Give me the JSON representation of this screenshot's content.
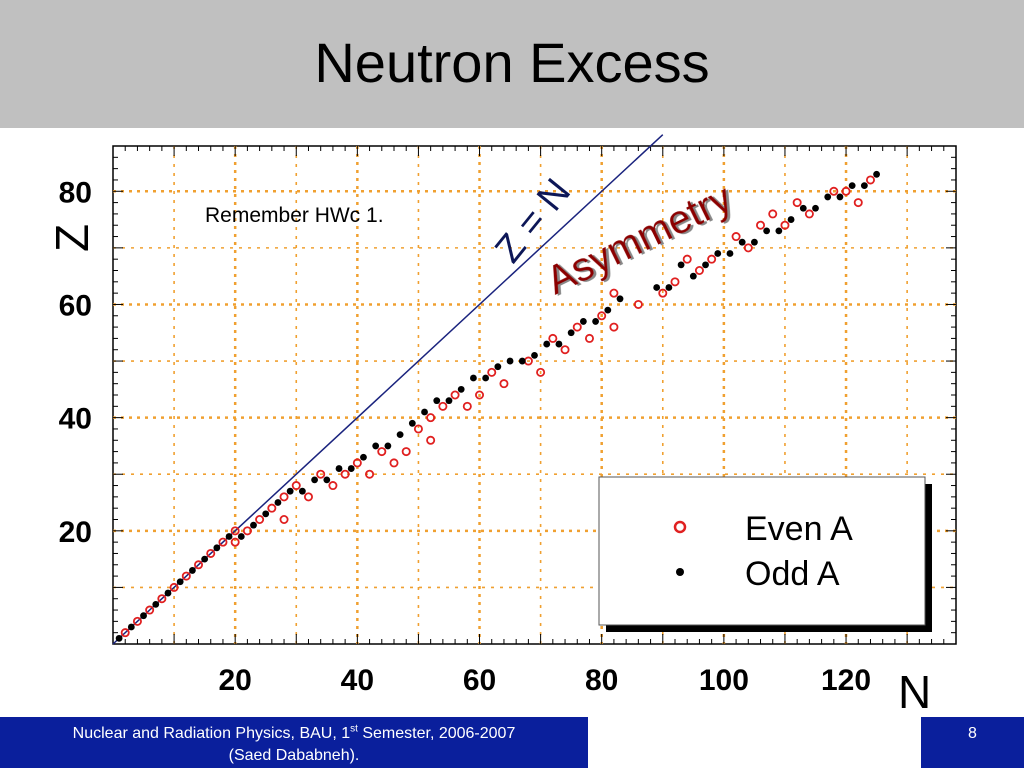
{
  "slide": {
    "title": "Neutron Excess",
    "note": "Remember HWc 1.",
    "footer_pre": "Nuclear and Radiation Physics, BAU, 1",
    "footer_sup": "st",
    "footer_post": " Semester, 2006-2007",
    "footer_line2": "(Saed Dababneh).",
    "page_number": "8"
  },
  "chart_data": {
    "type": "scatter",
    "xlabel": "N",
    "ylabel": "Z",
    "xlim": [
      0,
      138
    ],
    "ylim": [
      0,
      88
    ],
    "x_ticks": [
      20,
      40,
      60,
      80,
      100,
      120
    ],
    "y_ticks": [
      20,
      40,
      60,
      80
    ],
    "grid": true,
    "legend": "bottom-right",
    "annotations": {
      "line_label": "Z = N",
      "asymmetry_label": "Asymmetry"
    },
    "reference_line": {
      "label": "Z = N",
      "from": [
        0,
        0
      ],
      "to": [
        90,
        90
      ]
    },
    "colors": {
      "even": "#e02020",
      "odd": "#000000",
      "grid": "#f0a030",
      "line": "#1a237e",
      "asymmetry": "#8b0000"
    },
    "series": [
      {
        "name": "Even A",
        "marker": "open-circle",
        "points": [
          [
            2,
            2
          ],
          [
            4,
            4
          ],
          [
            6,
            6
          ],
          [
            8,
            8
          ],
          [
            10,
            10
          ],
          [
            12,
            12
          ],
          [
            14,
            14
          ],
          [
            16,
            16
          ],
          [
            18,
            18
          ],
          [
            20,
            20
          ],
          [
            20,
            18
          ],
          [
            22,
            20
          ],
          [
            24,
            22
          ],
          [
            26,
            24
          ],
          [
            28,
            22
          ],
          [
            28,
            26
          ],
          [
            30,
            28
          ],
          [
            32,
            26
          ],
          [
            34,
            30
          ],
          [
            36,
            28
          ],
          [
            38,
            30
          ],
          [
            40,
            32
          ],
          [
            42,
            30
          ],
          [
            44,
            34
          ],
          [
            46,
            32
          ],
          [
            48,
            34
          ],
          [
            50,
            38
          ],
          [
            52,
            40
          ],
          [
            52,
            36
          ],
          [
            54,
            42
          ],
          [
            56,
            44
          ],
          [
            58,
            42
          ],
          [
            60,
            44
          ],
          [
            62,
            48
          ],
          [
            64,
            46
          ],
          [
            68,
            50
          ],
          [
            70,
            48
          ],
          [
            72,
            54
          ],
          [
            74,
            52
          ],
          [
            76,
            56
          ],
          [
            78,
            54
          ],
          [
            80,
            58
          ],
          [
            82,
            62
          ],
          [
            82,
            56
          ],
          [
            86,
            60
          ],
          [
            90,
            62
          ],
          [
            92,
            64
          ],
          [
            94,
            68
          ],
          [
            96,
            66
          ],
          [
            98,
            68
          ],
          [
            102,
            72
          ],
          [
            104,
            70
          ],
          [
            106,
            74
          ],
          [
            108,
            76
          ],
          [
            110,
            74
          ],
          [
            112,
            78
          ],
          [
            114,
            76
          ],
          [
            118,
            80
          ],
          [
            120,
            80
          ],
          [
            122,
            78
          ],
          [
            124,
            82
          ]
        ]
      },
      {
        "name": "Odd A",
        "marker": "filled-circle",
        "points": [
          [
            1,
            1
          ],
          [
            3,
            3
          ],
          [
            5,
            5
          ],
          [
            7,
            7
          ],
          [
            9,
            9
          ],
          [
            11,
            11
          ],
          [
            13,
            13
          ],
          [
            15,
            15
          ],
          [
            17,
            17
          ],
          [
            19,
            19
          ],
          [
            21,
            19
          ],
          [
            23,
            21
          ],
          [
            25,
            23
          ],
          [
            27,
            25
          ],
          [
            29,
            27
          ],
          [
            31,
            27
          ],
          [
            33,
            29
          ],
          [
            35,
            29
          ],
          [
            37,
            31
          ],
          [
            39,
            31
          ],
          [
            41,
            33
          ],
          [
            43,
            35
          ],
          [
            45,
            35
          ],
          [
            47,
            37
          ],
          [
            49,
            39
          ],
          [
            51,
            41
          ],
          [
            53,
            43
          ],
          [
            55,
            43
          ],
          [
            57,
            45
          ],
          [
            59,
            47
          ],
          [
            61,
            47
          ],
          [
            63,
            49
          ],
          [
            65,
            50
          ],
          [
            67,
            50
          ],
          [
            69,
            51
          ],
          [
            71,
            53
          ],
          [
            73,
            53
          ],
          [
            75,
            55
          ],
          [
            77,
            57
          ],
          [
            79,
            57
          ],
          [
            81,
            59
          ],
          [
            83,
            61
          ],
          [
            89,
            63
          ],
          [
            91,
            63
          ],
          [
            93,
            67
          ],
          [
            95,
            65
          ],
          [
            97,
            67
          ],
          [
            99,
            69
          ],
          [
            101,
            69
          ],
          [
            103,
            71
          ],
          [
            105,
            71
          ],
          [
            107,
            73
          ],
          [
            109,
            73
          ],
          [
            111,
            75
          ],
          [
            113,
            77
          ],
          [
            115,
            77
          ],
          [
            117,
            79
          ],
          [
            119,
            79
          ],
          [
            121,
            81
          ],
          [
            123,
            81
          ],
          [
            125,
            83
          ]
        ]
      }
    ]
  }
}
